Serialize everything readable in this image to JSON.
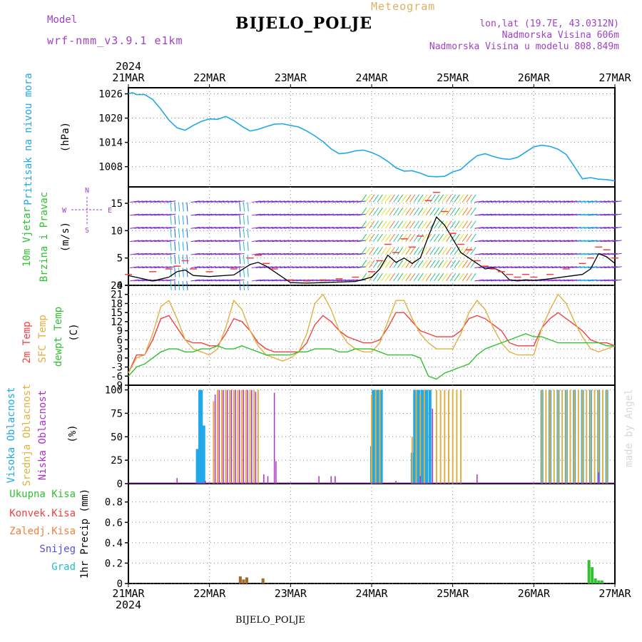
{
  "header": {
    "model_label": "Model",
    "model_name": "wrf-nmm_v3.9.1  e1km",
    "station": "BIJELO_POLJE",
    "meteogram": "Meteogram",
    "lonlat": "lon,lat (19.7E, 43.0312N)",
    "altitude": "Nadmorska Visina 606m",
    "model_altitude": "Nadmorska Visina u modelu 808.849m",
    "year": "2024"
  },
  "footer": {
    "station": "BIJELO_POLJE",
    "year": "2024",
    "credit": "made by Angel"
  },
  "colors": {
    "pressure": "#20a8e8",
    "wind_speed": "#000000",
    "gust": "#f04040",
    "t2m": "#f04040",
    "tsfc": "#e0b040",
    "dewpt": "#30c030",
    "cloud_high": "#20a8e8",
    "cloud_mid": "#e0b040",
    "cloud_low": "#b030c8",
    "precip_total": "#30c030",
    "precip_conv": "#f04040",
    "precip_frozen": "#f08040",
    "snow": "#5050e0",
    "graupel": "#20c0c0",
    "label_purple": "#a040c8",
    "grid": "#888888"
  },
  "chart_data": [
    {
      "type": "line",
      "panel": "pressure",
      "ylabel": [
        "Pritisak na nivou mora",
        "(hPa)"
      ],
      "ylim": [
        1003,
        1027.5
      ],
      "yticks": [
        1008,
        1014,
        1020,
        1026
      ],
      "xticks": [
        "21MAR",
        "22MAR",
        "23MAR",
        "24MAR",
        "25MAR",
        "26MAR",
        "27MAR"
      ],
      "x": [
        0,
        0.05,
        0.1,
        0.2,
        0.3,
        0.4,
        0.5,
        0.6,
        0.7,
        0.8,
        0.9,
        1.0,
        1.1,
        1.2,
        1.3,
        1.4,
        1.5,
        1.6,
        1.7,
        1.8,
        1.9,
        2.0,
        2.1,
        2.2,
        2.3,
        2.4,
        2.5,
        2.6,
        2.7,
        2.8,
        2.9,
        3.0,
        3.1,
        3.2,
        3.3,
        3.4,
        3.5,
        3.6,
        3.7,
        3.8,
        3.9,
        4.0,
        4.1,
        4.2,
        4.3,
        4.4,
        4.5,
        4.6,
        4.7,
        4.8,
        4.9,
        5.0,
        5.1,
        5.2,
        5.3,
        5.4,
        5.5,
        5.6,
        5.7,
        5.8,
        5.9,
        6.0
      ],
      "series": [
        {
          "values": [
            1026,
            1026.3,
            1025.8,
            1025.8,
            1024.6,
            1022.2,
            1019.5,
            1017.6,
            1017.0,
            1018.2,
            1019.2,
            1019.8,
            1019.7,
            1020.4,
            1019.4,
            1018.0,
            1016.8,
            1017.2,
            1017.9,
            1018.5,
            1018.6,
            1018.2,
            1017.8,
            1016.8,
            1015.6,
            1014.2,
            1012.4,
            1011.2,
            1011.4,
            1011.9,
            1012.1,
            1011.5,
            1010.6,
            1009.3,
            1007.7,
            1006.9,
            1007.0,
            1006.4,
            1005.6,
            1005.5,
            1005.6,
            1006.7,
            1007.3,
            1009.1,
            1010.7,
            1011.2,
            1010.5,
            1010.0,
            1009.8,
            1010.3,
            1011.6,
            1012.9,
            1013.3,
            1013.0,
            1012.3,
            1011.0,
            1008.0,
            1005.0,
            1005.3,
            1004.9,
            1004.8,
            1004.5
          ]
        }
      ]
    },
    {
      "type": "line",
      "panel": "wind",
      "ylabel": [
        "10m Vjetar",
        "Brzina i Pravac",
        "(m/s)"
      ],
      "ylim": [
        0,
        18
      ],
      "yticks": [
        0,
        5,
        10,
        15
      ],
      "compass": {
        "n": "N",
        "s": "S",
        "e": "E",
        "w": "W"
      },
      "x": [
        0,
        0.3,
        0.5,
        0.6,
        0.7,
        0.8,
        1.0,
        1.3,
        1.5,
        1.6,
        1.7,
        1.8,
        2.0,
        2.2,
        2.4,
        2.6,
        2.8,
        3.0,
        3.1,
        3.2,
        3.3,
        3.4,
        3.5,
        3.6,
        3.7,
        3.8,
        3.9,
        4.0,
        4.1,
        4.2,
        4.3,
        4.4,
        4.5,
        4.6,
        4.7,
        4.8,
        4.9,
        5.0,
        5.2,
        5.4,
        5.6,
        5.7,
        5.8,
        5.9,
        6.0
      ],
      "series": [
        {
          "name": "speed",
          "values": [
            1.8,
            0.8,
            1.5,
            2.5,
            2.8,
            1.8,
            1.6,
            1.9,
            3.8,
            4.2,
            3.5,
            2.5,
            0.5,
            0.4,
            0.5,
            0.6,
            0.7,
            1.5,
            3.0,
            5.5,
            4.2,
            5.0,
            4.0,
            5.0,
            9.0,
            12.5,
            11.0,
            8.5,
            6.0,
            5.0,
            4.0,
            3.0,
            3.2,
            2.5,
            1.0,
            0.8,
            1.0,
            0.9,
            1.2,
            1.6,
            2.0,
            3.0,
            5.8,
            5.2,
            4.0
          ]
        },
        {
          "name": "gust",
          "values": [
            2.0,
            2.5,
            3.0,
            3.5,
            4.5,
            3.0,
            2.5,
            3.0,
            5.0,
            5.5,
            4.0,
            3.0,
            1.0,
            0.8,
            1.0,
            1.2,
            1.5,
            2.5,
            4.5,
            7.5,
            6.0,
            8.5,
            7.0,
            9.0,
            15.5,
            17.0,
            13.5,
            9.5,
            7.5,
            6.5,
            4.5,
            3.5,
            3.0,
            2.5,
            2.0,
            1.5,
            2.0,
            1.5,
            2.0,
            3.0,
            4.0,
            5.0,
            7.0,
            6.5,
            5.0
          ]
        }
      ]
    },
    {
      "type": "line",
      "panel": "temperature",
      "ylabel": [
        "2m Temp",
        "SFC Temp",
        "dewpt Temp",
        "(C)"
      ],
      "ylim": [
        -9,
        24
      ],
      "yticks": [
        -9,
        -6,
        -3,
        0,
        3,
        6,
        9,
        12,
        15,
        18,
        21,
        24
      ],
      "x": [
        0,
        0.1,
        0.2,
        0.3,
        0.4,
        0.5,
        0.6,
        0.7,
        0.8,
        0.9,
        1.0,
        1.1,
        1.2,
        1.3,
        1.4,
        1.5,
        1.6,
        1.7,
        1.8,
        1.9,
        2.0,
        2.1,
        2.2,
        2.3,
        2.4,
        2.5,
        2.6,
        2.7,
        2.8,
        2.9,
        3.0,
        3.1,
        3.2,
        3.3,
        3.4,
        3.5,
        3.6,
        3.7,
        3.8,
        3.9,
        4.0,
        4.1,
        4.2,
        4.3,
        4.4,
        4.5,
        4.6,
        4.7,
        4.8,
        4.9,
        5.0,
        5.1,
        5.2,
        5.3,
        5.4,
        5.5,
        5.6,
        5.7,
        5.8,
        5.9,
        6.0
      ],
      "series": [
        {
          "name": "2m Temp",
          "values": [
            -5,
            1,
            1,
            6,
            13,
            14,
            10,
            6,
            5,
            5,
            4,
            4,
            8,
            13,
            12,
            9,
            5,
            3,
            2,
            2,
            2,
            2,
            5,
            11,
            14,
            12,
            9,
            7,
            6,
            5,
            5,
            6,
            10,
            15,
            15,
            12,
            9,
            8,
            7,
            7,
            7,
            9,
            13,
            14,
            13,
            11,
            9,
            5,
            4,
            4,
            4,
            10,
            13,
            15,
            13,
            11,
            9,
            6,
            5,
            5,
            4
          ]
        },
        {
          "name": "SFC Temp",
          "values": [
            -5,
            0,
            1,
            8,
            17,
            19,
            13,
            6,
            3,
            2,
            1,
            3,
            10,
            19,
            16,
            9,
            4,
            1,
            0,
            -1,
            0,
            2,
            8,
            18,
            21,
            16,
            9,
            5,
            3,
            2,
            2,
            5,
            12,
            19,
            19,
            13,
            8,
            5,
            3,
            3,
            3,
            8,
            15,
            19,
            16,
            10,
            5,
            2,
            1,
            1,
            1,
            10,
            16,
            21,
            18,
            12,
            7,
            3,
            2,
            3,
            4
          ]
        },
        {
          "name": "dewpt Temp",
          "values": [
            -6,
            -3,
            -2,
            0,
            2,
            3,
            3,
            2,
            2,
            3,
            3,
            4,
            3,
            3,
            4,
            3,
            2,
            1,
            1,
            1,
            1,
            2,
            2,
            3,
            3,
            3,
            2,
            2,
            3,
            3,
            3,
            2,
            1,
            1,
            1,
            1,
            0,
            -6,
            -7,
            -5,
            -4,
            -3,
            -2,
            1,
            3,
            4,
            5,
            6,
            7,
            8,
            7,
            7,
            6,
            5,
            5,
            5,
            5,
            5,
            5,
            4,
            4
          ]
        }
      ]
    },
    {
      "type": "bar",
      "panel": "cloud",
      "ylabel": [
        "Visoka Oblacnost",
        "Srednja Oblacnost",
        "Niska Oblacnost",
        "(%)"
      ],
      "ylim": [
        0,
        105
      ],
      "yticks": [
        0,
        25,
        50,
        75,
        100
      ],
      "series": [
        {
          "name": "Visoka Oblacnost",
          "x": [
            0.85,
            0.88,
            0.9,
            0.93,
            3.0,
            3.02,
            3.05,
            3.08,
            3.12,
            3.5,
            3.53,
            3.55,
            3.58,
            3.62,
            3.65,
            3.68,
            3.72,
            5.1,
            5.2,
            5.3,
            5.4,
            5.5,
            5.6,
            5.7,
            5.8,
            5.9
          ],
          "values": [
            37,
            100,
            100,
            62,
            40,
            100,
            100,
            100,
            100,
            33,
            100,
            100,
            100,
            100,
            100,
            100,
            100,
            100,
            100,
            100,
            100,
            100,
            100,
            100,
            100,
            100
          ]
        },
        {
          "name": "Srednja Oblacnost",
          "x": [
            1.05,
            1.1,
            1.15,
            1.2,
            1.25,
            1.3,
            1.35,
            1.4,
            1.45,
            1.5,
            1.55,
            1.6,
            3.0,
            3.05,
            3.1,
            3.5,
            3.55,
            3.6,
            3.65,
            3.8,
            3.85,
            3.9,
            3.95,
            4.0,
            4.05,
            4.1,
            5.1,
            5.15,
            5.2,
            5.25,
            5.3,
            5.35,
            5.4,
            5.45,
            5.5,
            5.55,
            5.6,
            5.65,
            5.7,
            5.75,
            5.8,
            5.85,
            5.9
          ],
          "values": [
            88,
            100,
            100,
            100,
            100,
            100,
            100,
            100,
            100,
            100,
            100,
            100,
            95,
            100,
            100,
            50,
            100,
            95,
            100,
            100,
            100,
            100,
            100,
            100,
            100,
            100,
            100,
            100,
            100,
            100,
            100,
            100,
            100,
            100,
            100,
            100,
            100,
            100,
            100,
            100,
            100,
            100,
            100
          ]
        },
        {
          "name": "Niska Oblacnost",
          "x": [
            0.6,
            0.95,
            1.07,
            1.12,
            1.17,
            1.22,
            1.27,
            1.32,
            1.37,
            1.42,
            1.47,
            1.52,
            1.57,
            1.67,
            1.72,
            1.8,
            1.82,
            2.35,
            2.5,
            2.55,
            3.3,
            3.6,
            3.75,
            4.3,
            5.8
          ],
          "values": [
            6,
            3,
            95,
            100,
            100,
            100,
            100,
            100,
            100,
            100,
            100,
            100,
            98,
            10,
            8,
            97,
            24,
            8,
            8,
            8,
            3,
            8,
            80,
            10,
            12
          ]
        }
      ]
    },
    {
      "type": "bar",
      "panel": "precip",
      "ylabel": [
        "1hr Precip (mm)"
      ],
      "legend": [
        "Ukupna Kisa",
        "Konvek.Kisa",
        "Zaledj.Kisa",
        "Snijeg",
        "Grad"
      ],
      "ylim": [
        0,
        0.98
      ],
      "yticks": [
        0,
        0.2,
        0.4,
        0.6,
        0.8
      ],
      "series": [
        {
          "name": "Ukupna Kisa",
          "x": [
            1.38,
            1.42,
            1.46,
            1.66,
            5.68,
            5.72,
            5.76,
            5.8,
            5.84
          ],
          "values": [
            0.07,
            0.04,
            0.06,
            0.05,
            0.23,
            0.16,
            0.05,
            0.03,
            0.03
          ]
        },
        {
          "name": "Konvek.Kisa",
          "x": [
            1.38,
            1.42,
            1.46,
            1.66
          ],
          "values": [
            0.06,
            0.03,
            0.05,
            0.04
          ]
        }
      ]
    }
  ]
}
